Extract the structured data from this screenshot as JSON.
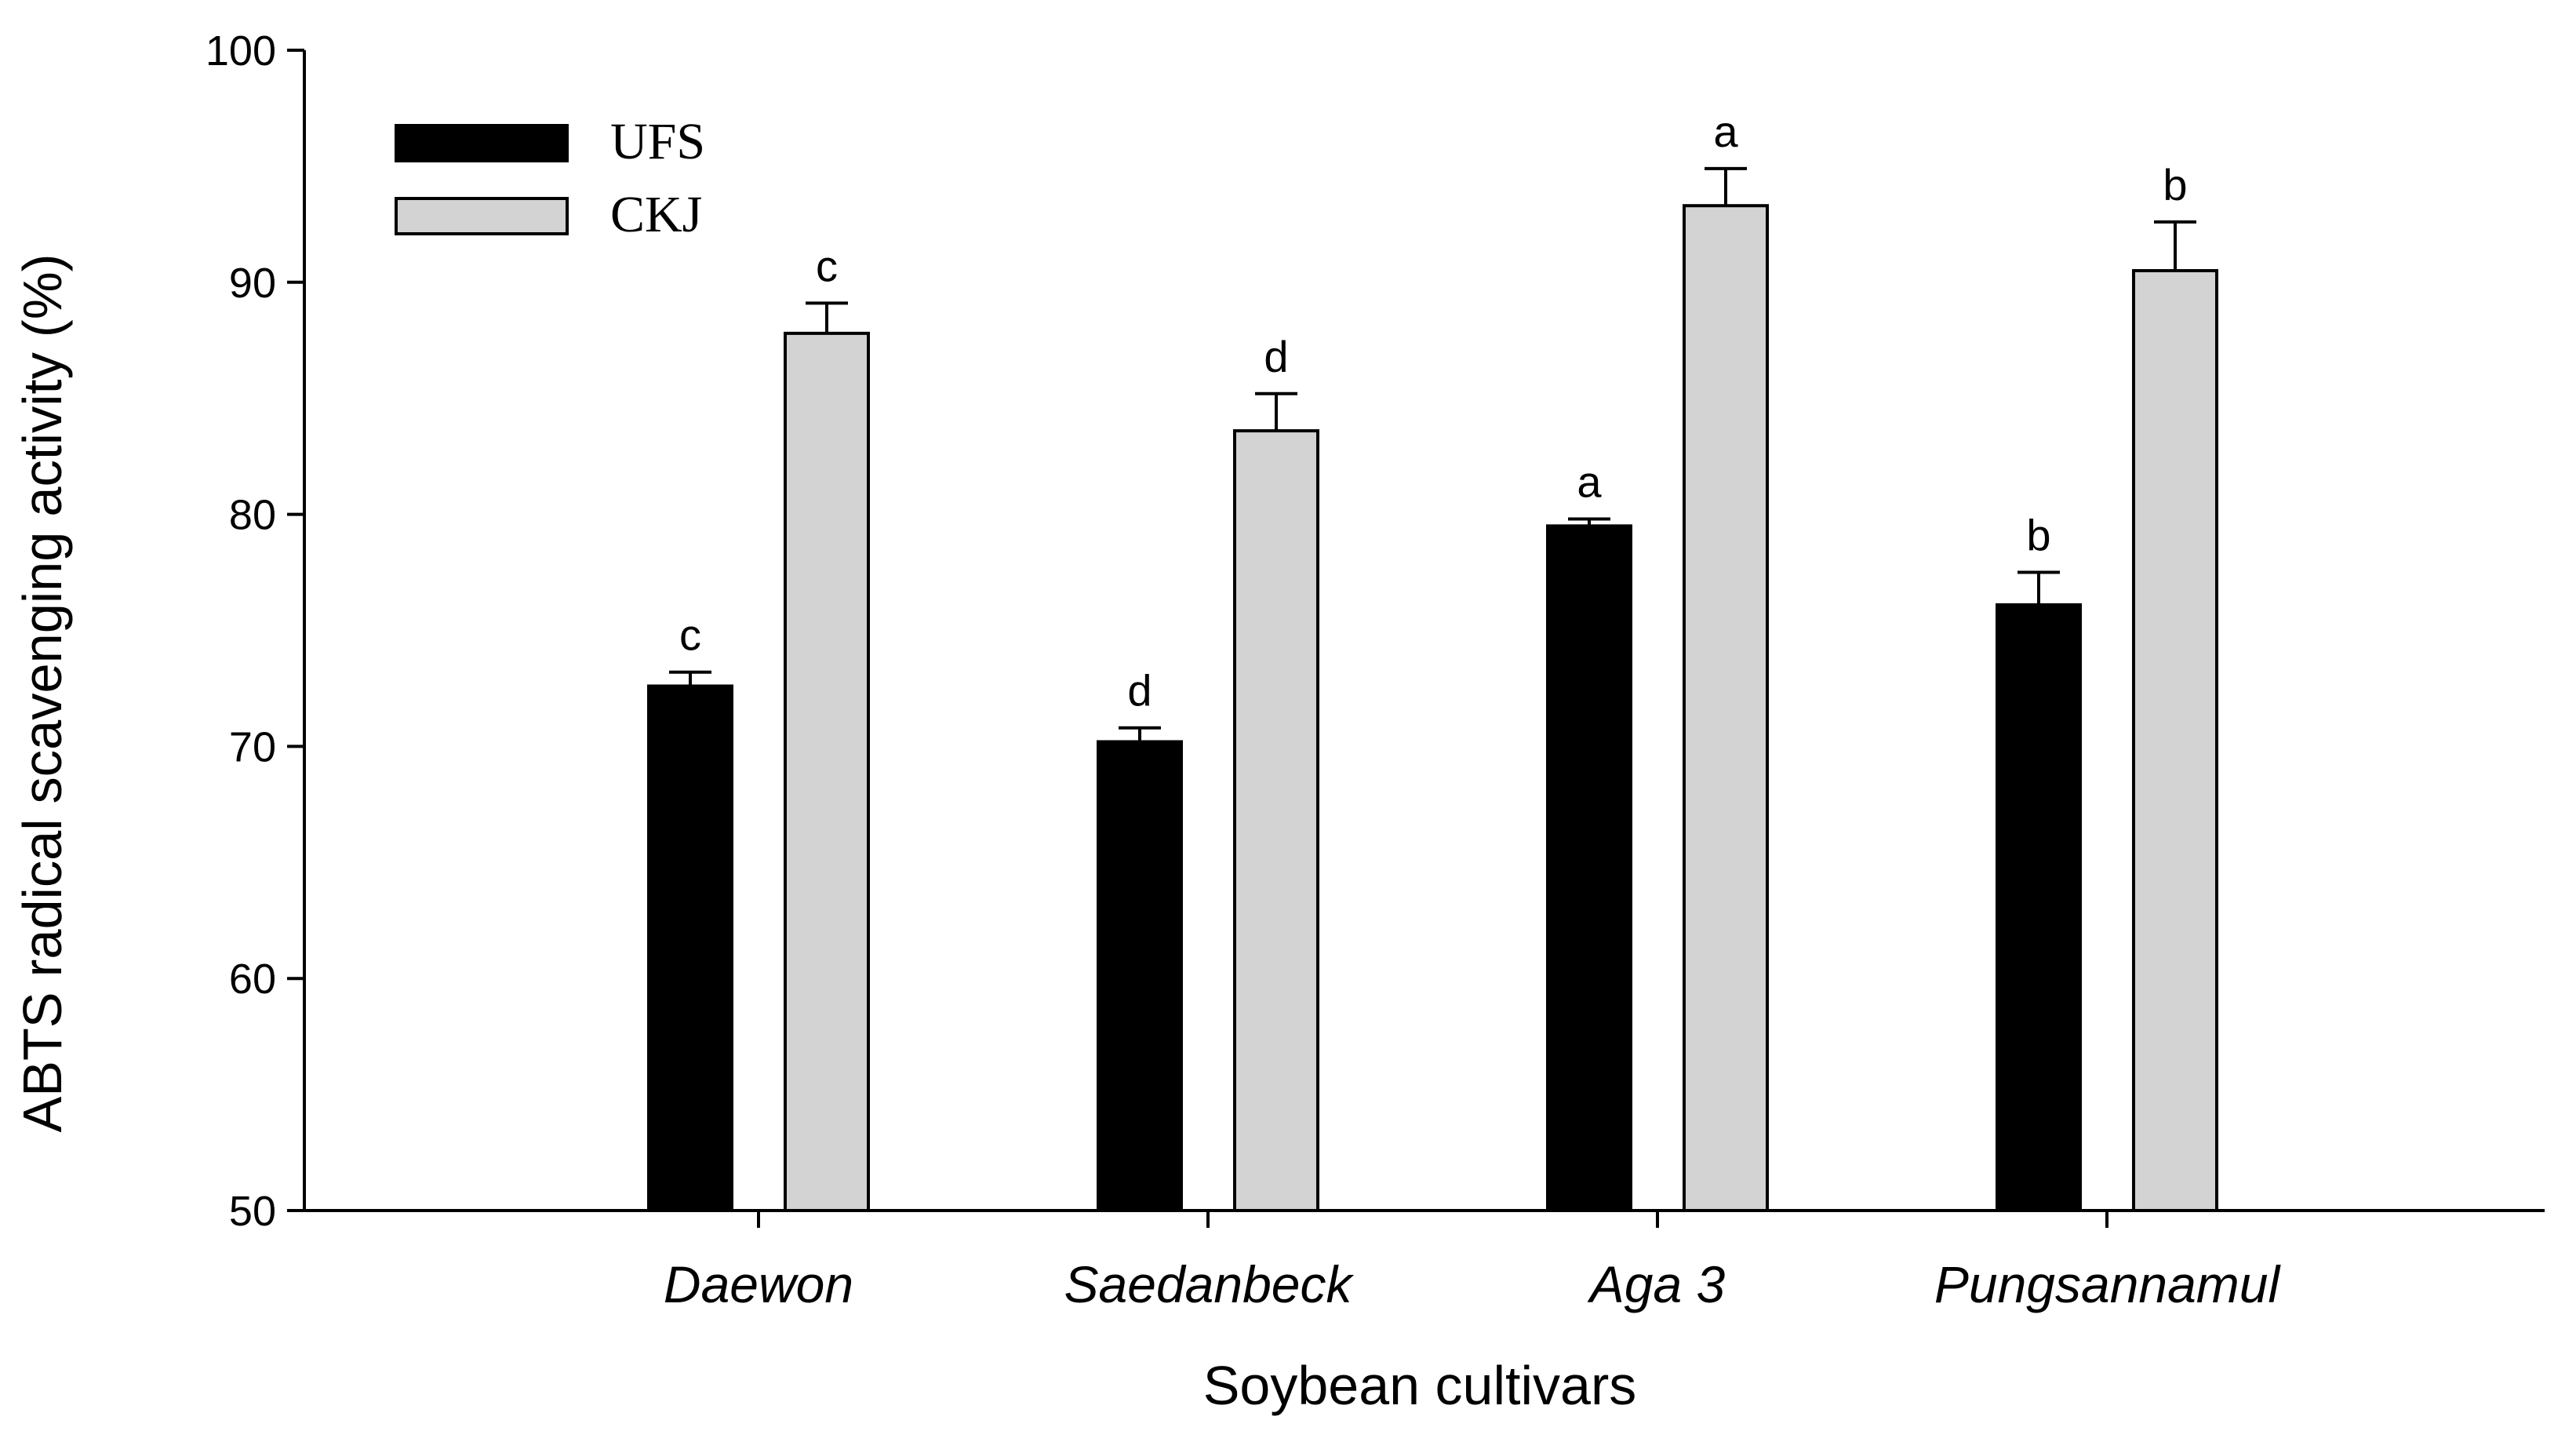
{
  "chart_data": {
    "type": "bar",
    "title": "",
    "xlabel": "Soybean cultivars",
    "ylabel": "ABTS radical scavenging activity (%)",
    "ylim": [
      50,
      100
    ],
    "yticks": [
      50,
      60,
      70,
      80,
      90,
      100
    ],
    "categories": [
      "Daewon",
      "Saedanbeck",
      "Aga 3",
      "Pungsannamul"
    ],
    "series": [
      {
        "name": "UFS",
        "color": "#000000",
        "values": [
          72.6,
          70.2,
          79.5,
          76.1
        ],
        "errors": [
          0.6,
          0.6,
          0.3,
          1.4
        ],
        "labels": [
          "c",
          "d",
          "a",
          "b"
        ]
      },
      {
        "name": "CKJ",
        "color": "#d3d3d3",
        "values": [
          87.8,
          83.6,
          93.3,
          90.5
        ],
        "errors": [
          1.3,
          1.6,
          1.6,
          2.1
        ],
        "labels": [
          "c",
          "d",
          "a",
          "b"
        ]
      }
    ],
    "legend_position": "top-left",
    "grid": false
  }
}
